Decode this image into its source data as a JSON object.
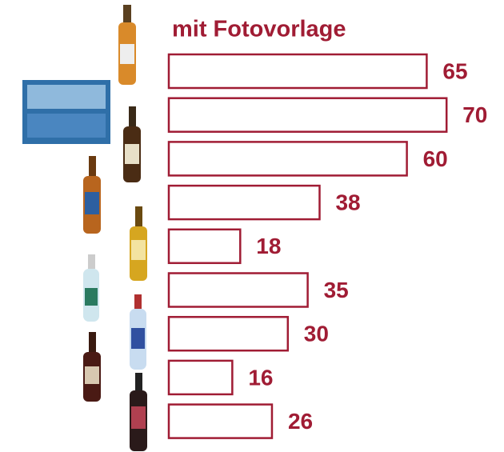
{
  "chart_data": {
    "type": "bar",
    "orientation": "horizontal",
    "title": "mit Fotovorlage",
    "categories": [
      null,
      null,
      null,
      null,
      null,
      null,
      null,
      null,
      null
    ],
    "values": [
      65,
      70,
      60,
      38,
      18,
      35,
      30,
      16,
      26
    ],
    "color": "#a01c34"
  }
}
